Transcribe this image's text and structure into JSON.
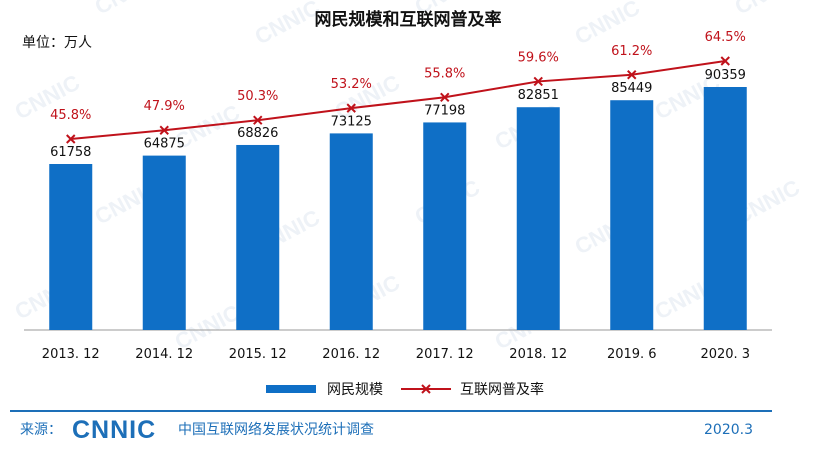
{
  "chart_data": {
    "type": "bar",
    "title": "网民规模和互联网普及率",
    "unit_label": "单位：万人",
    "categories": [
      "2013. 12",
      "2014. 12",
      "2015. 12",
      "2016. 12",
      "2017. 12",
      "2018. 12",
      "2019. 6",
      "2020. 3"
    ],
    "series": [
      {
        "name": "网民规模",
        "type": "bar",
        "color": "#0f6fc6",
        "values": [
          61758,
          64875,
          68826,
          73125,
          77198,
          82851,
          85449,
          90359
        ],
        "labels": [
          "61758",
          "64875",
          "68826",
          "73125",
          "77198",
          "82851",
          "85449",
          "90359"
        ]
      },
      {
        "name": "互联网普及率",
        "type": "line",
        "color": "#c0121b",
        "values": [
          45.8,
          47.9,
          50.3,
          53.2,
          55.8,
          59.6,
          61.2,
          64.5
        ],
        "labels": [
          "45.8%",
          "47.9%",
          "50.3%",
          "53.2%",
          "55.8%",
          "59.6%",
          "61.2%",
          "64.5%"
        ]
      }
    ],
    "legend_position": "bottom",
    "grid": false
  },
  "footer": {
    "source_label": "来源：",
    "brand": "CNNIC",
    "source_text": "中国互联网络发展状况统计调查",
    "date": "2020.3"
  },
  "watermark_text": "CNNIC",
  "colors": {
    "bar": "#0f6fc6",
    "line": "#c0121b",
    "footer": "#1d6fb8",
    "footer_rule": "#1d6fb8"
  }
}
